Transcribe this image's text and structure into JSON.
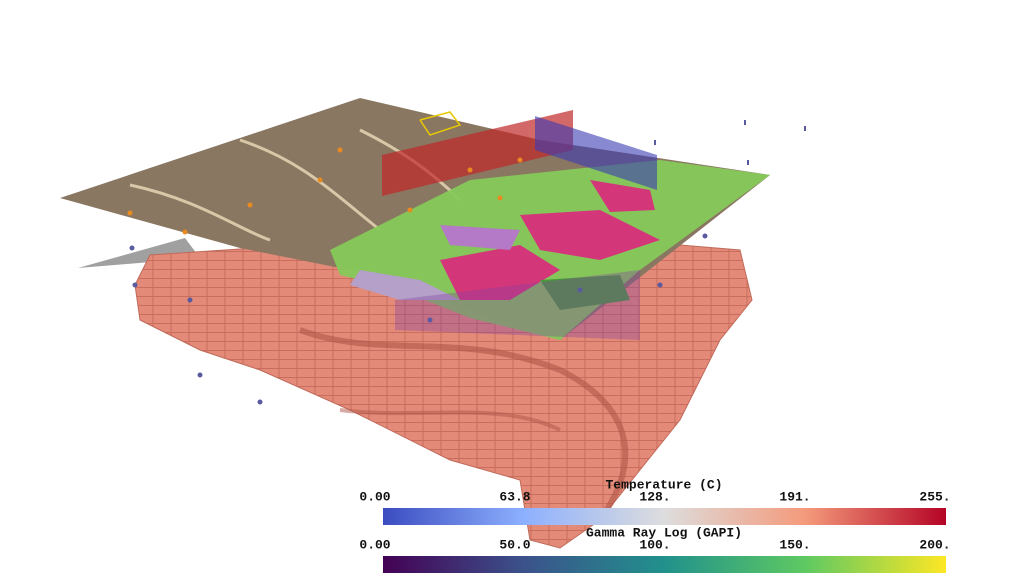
{
  "colorbars": [
    {
      "title": "Temperature (C)",
      "labels": [
        "0.00",
        "63.8",
        "128.",
        "191.",
        "255."
      ]
    },
    {
      "title": "Gamma Ray Log (GAPI)",
      "labels": [
        "0.00",
        "50.0",
        "100.",
        "150.",
        "200."
      ]
    }
  ]
}
